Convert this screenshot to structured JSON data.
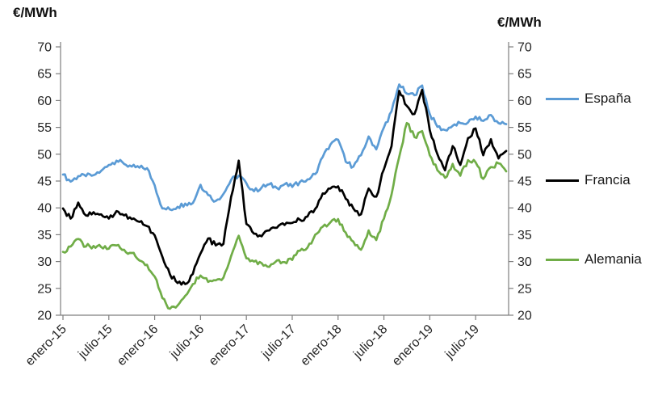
{
  "accent_colors": {
    "espana_blue": "#5B9BD5",
    "francia_black": "#000000",
    "alemania_green": "#70AD47",
    "axis_gray": "#7F7F7F"
  },
  "chart_data": {
    "type": "line",
    "title": "",
    "ylabel_left": "€/MWh",
    "ylabel_right": "€/MWh",
    "xlabel": "",
    "ylim": [
      20,
      70
    ],
    "y_ticks": [
      20,
      25,
      30,
      35,
      40,
      45,
      50,
      55,
      60,
      65,
      70
    ],
    "grid": false,
    "legend_position": "right",
    "x_unit": "months from enero-2015 (monthly estimates of weekly price series)",
    "x_range": "enero-2015 to noviembre-2019",
    "x_tick_labels": [
      "enero-15",
      "julio-15",
      "enero-16",
      "julio-16",
      "enero-17",
      "julio-17",
      "enero-18",
      "julio-18",
      "enero-19",
      "julio-19"
    ],
    "x_tick_months": [
      0,
      6,
      12,
      18,
      24,
      30,
      36,
      42,
      48,
      54
    ],
    "series": [
      {
        "name": "España",
        "color": "#5B9BD5",
        "values": [
          46.2,
          44.9,
          45.9,
          45.9,
          46.1,
          46.9,
          48.0,
          48.8,
          48.2,
          47.7,
          47.5,
          47.4,
          44.2,
          39.9,
          39.7,
          40.2,
          40.8,
          40.9,
          44.3,
          42.4,
          41.3,
          42.6,
          45.2,
          46.0,
          44.6,
          43.1,
          43.8,
          44.4,
          43.7,
          44.4,
          43.9,
          44.8,
          45.3,
          46.3,
          49.5,
          51.8,
          52.7,
          48.6,
          47.7,
          49.8,
          53.3,
          50.9,
          55.0,
          58.0,
          63.0,
          61.3,
          61.0,
          62.8,
          57.5,
          55.1,
          54.5,
          55.3,
          55.8,
          55.9,
          57.0,
          56.2,
          57.3,
          55.8,
          55.6
        ]
      },
      {
        "name": "Francia",
        "color": "#000000",
        "values": [
          39.9,
          38.0,
          41.0,
          38.6,
          39.2,
          38.8,
          38.0,
          39.4,
          38.6,
          37.9,
          37.4,
          36.6,
          34.9,
          30.9,
          27.6,
          26.0,
          25.8,
          27.7,
          31.5,
          34.3,
          33.0,
          33.3,
          42.0,
          48.8,
          37.0,
          35.2,
          34.7,
          35.8,
          36.3,
          36.8,
          37.2,
          37.8,
          38.4,
          39.8,
          42.7,
          43.6,
          44.0,
          41.7,
          39.9,
          38.8,
          43.6,
          42.1,
          47.2,
          51.5,
          61.8,
          59.0,
          57.5,
          62.0,
          54.5,
          50.0,
          47.0,
          51.5,
          48.0,
          53.0,
          54.8,
          49.8,
          52.8,
          49.2,
          50.6
        ]
      },
      {
        "name": "Alemania",
        "color": "#70AD47",
        "values": [
          31.8,
          32.8,
          34.2,
          32.8,
          32.9,
          32.7,
          32.4,
          33.0,
          32.2,
          31.6,
          30.2,
          29.4,
          27.2,
          23.2,
          21.2,
          21.8,
          23.6,
          25.8,
          27.4,
          26.2,
          26.5,
          27.0,
          31.0,
          34.8,
          30.6,
          30.0,
          29.7,
          29.0,
          30.2,
          29.9,
          30.3,
          32.0,
          32.6,
          35.0,
          36.5,
          37.3,
          37.9,
          35.4,
          33.7,
          32.2,
          35.8,
          34.0,
          38.0,
          42.5,
          49.5,
          55.8,
          53.2,
          54.3,
          49.8,
          47.0,
          45.6,
          48.2,
          46.0,
          48.9,
          48.5,
          45.4,
          47.6,
          48.3,
          46.8
        ]
      }
    ],
    "legend": [
      {
        "label": "España"
      },
      {
        "label": "Francia"
      },
      {
        "label": "Alemania"
      }
    ]
  }
}
